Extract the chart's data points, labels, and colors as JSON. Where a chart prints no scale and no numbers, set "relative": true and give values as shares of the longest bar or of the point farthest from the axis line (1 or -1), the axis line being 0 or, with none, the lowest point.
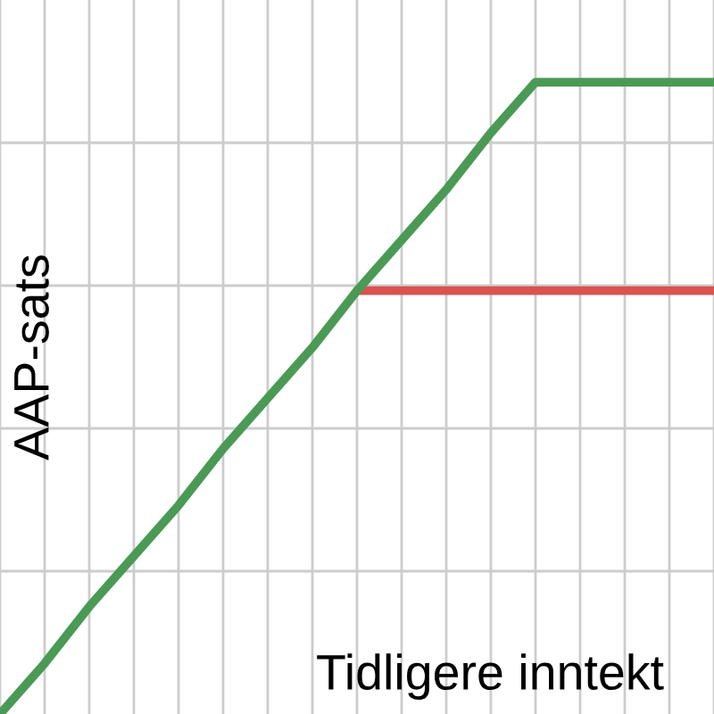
{
  "chart_data": {
    "type": "line",
    "relative": true,
    "xlabel": "Tidligere inntekt",
    "ylabel": "AAP-sats",
    "grid": true,
    "line_style": "solid",
    "categories": [
      null,
      null,
      null,
      null,
      null,
      null,
      null,
      null,
      null,
      null,
      null,
      null,
      null,
      null,
      null,
      null,
      null
    ],
    "series": [
      {
        "color": "#d9534f",
        "values": [
          null,
          null,
          null,
          null,
          null,
          null,
          null,
          null,
          0.67,
          0.67,
          0.67,
          0.67,
          0.67,
          0.67,
          0.67,
          0.67,
          0.67
        ]
      },
      {
        "color": "#4a9a55",
        "values": [
          0,
          0.08,
          0.17,
          0.25,
          0.33,
          0.42,
          0.5,
          0.58,
          0.67,
          0.75,
          0.83,
          0.92,
          1,
          1,
          1,
          1,
          1
        ]
      }
    ]
  }
}
